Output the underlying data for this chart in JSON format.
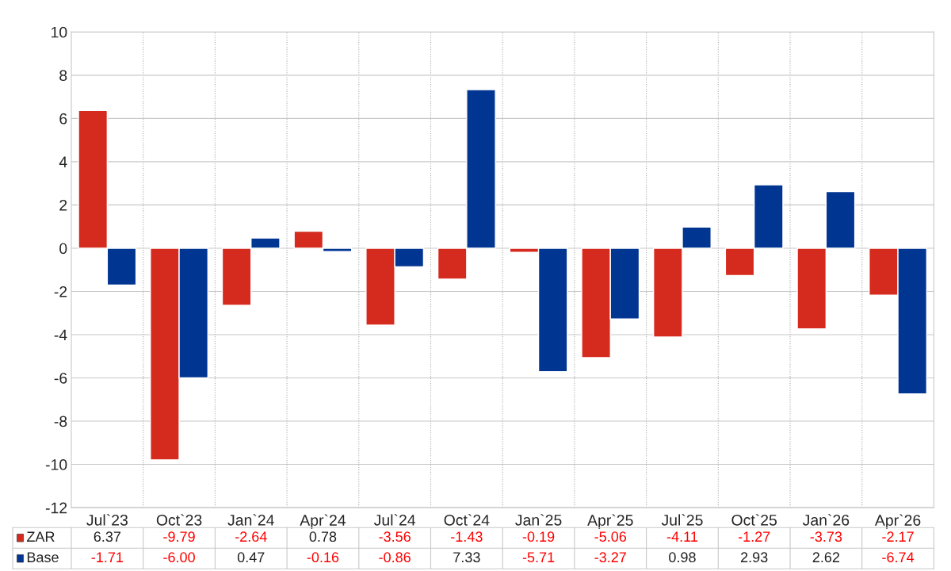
{
  "chart_data": {
    "type": "bar",
    "categories": [
      "Jul`23",
      "Oct`23",
      "Jan`24",
      "Apr`24",
      "Jul`24",
      "Oct`24",
      "Jan`25",
      "Apr`25",
      "Jul`25",
      "Oct`25",
      "Jan`26",
      "Apr`26"
    ],
    "series": [
      {
        "name": "ZAR",
        "color": "#d52b1e",
        "values": [
          6.37,
          -9.79,
          -2.64,
          0.78,
          -3.56,
          -1.43,
          -0.19,
          -5.06,
          -4.11,
          -1.27,
          -3.73,
          -2.17
        ],
        "value_labels": [
          "6.37",
          "-9.79",
          "-2.64",
          "0.78",
          "-3.56",
          "-1.43",
          "-0.19",
          "-5.06",
          "-4.11",
          "-1.27",
          "-3.73",
          "-2.17"
        ]
      },
      {
        "name": "Base",
        "color": "#003591",
        "values": [
          -1.71,
          -6.0,
          0.47,
          -0.16,
          -0.86,
          7.33,
          -5.71,
          -3.27,
          0.98,
          2.93,
          2.62,
          -6.74
        ],
        "value_labels": [
          "-1.71",
          "-6.00",
          "0.47",
          "-0.16",
          "-0.86",
          "7.33",
          "-5.71",
          "-3.27",
          "0.98",
          "2.93",
          "2.62",
          "-6.74"
        ]
      }
    ],
    "ylim": [
      -12,
      10
    ],
    "yticks": [
      -12,
      -10,
      -8,
      -6,
      -4,
      -2,
      0,
      2,
      4,
      6,
      8,
      10
    ],
    "grid": true,
    "legend": "bottom"
  }
}
